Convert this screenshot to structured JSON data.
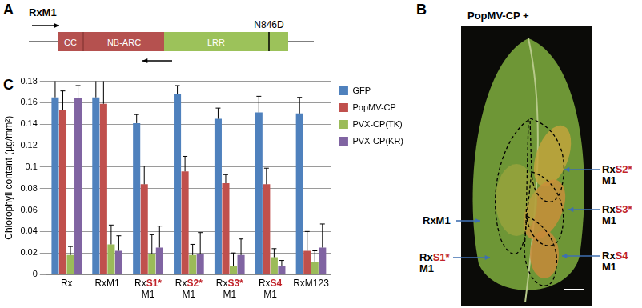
{
  "panel_labels": [
    "A",
    "B",
    "C"
  ],
  "diagram": {
    "construct": "RxM1",
    "domains": [
      "CC",
      "NB-ARC",
      "LRR"
    ],
    "mutation": "N846D"
  },
  "photo": {
    "title": "PopMV-CP +",
    "labels_left": [
      "RxM1",
      "RxS1*\nM1"
    ],
    "labels_right": [
      "RxS2*\nM1",
      "RxS3*\nM1",
      "RxS4\nM1"
    ]
  },
  "chart_data": {
    "type": "bar",
    "y_label": "Chlorophyll content (μg/mm²)",
    "categories": [
      "Rx",
      "RxM1",
      "RxS1*\nM1",
      "RxS2*\nM1",
      "RxS3*\nM1",
      "RxS4\nM1",
      "RxM123"
    ],
    "series": [
      {
        "name": "GFP",
        "color": "#4f81bd",
        "values": [
          0.165,
          0.165,
          0.141,
          0.168,
          0.145,
          0.151,
          0.15
        ],
        "errors": [
          0.02,
          0.022,
          0.008,
          0.008,
          0.01,
          0.015,
          0.015
        ]
      },
      {
        "name": "PopMV-CP",
        "color": "#c0504d",
        "values": [
          0.153,
          0.159,
          0.084,
          0.096,
          0.085,
          0.084,
          0.022
        ],
        "errors": [
          0.018,
          0.028,
          0.017,
          0.014,
          0.008,
          0.015,
          0.018
        ]
      },
      {
        "name": "PVX-CP(TK)",
        "color": "#9bbb59",
        "values": [
          0.018,
          0.028,
          0.019,
          0.018,
          0.008,
          0.016,
          0.012
        ],
        "errors": [
          0.008,
          0.018,
          0.018,
          0.01,
          0.012,
          0.008,
          0.01
        ]
      },
      {
        "name": "PVX-CP(KR)",
        "color": "#8064a2",
        "values": [
          0.164,
          0.022,
          0.025,
          0.019,
          0.018,
          0.008,
          0.025
        ],
        "errors": [
          0.012,
          0.014,
          0.02,
          0.02,
          0.015,
          0.005,
          0.022
        ]
      }
    ],
    "ylim": [
      0,
      0.18
    ],
    "yticks": [
      0,
      0.02,
      0.04,
      0.06,
      0.08,
      0.1,
      0.12,
      0.14,
      0.16,
      0.18
    ],
    "grid": true,
    "legend": "right"
  }
}
